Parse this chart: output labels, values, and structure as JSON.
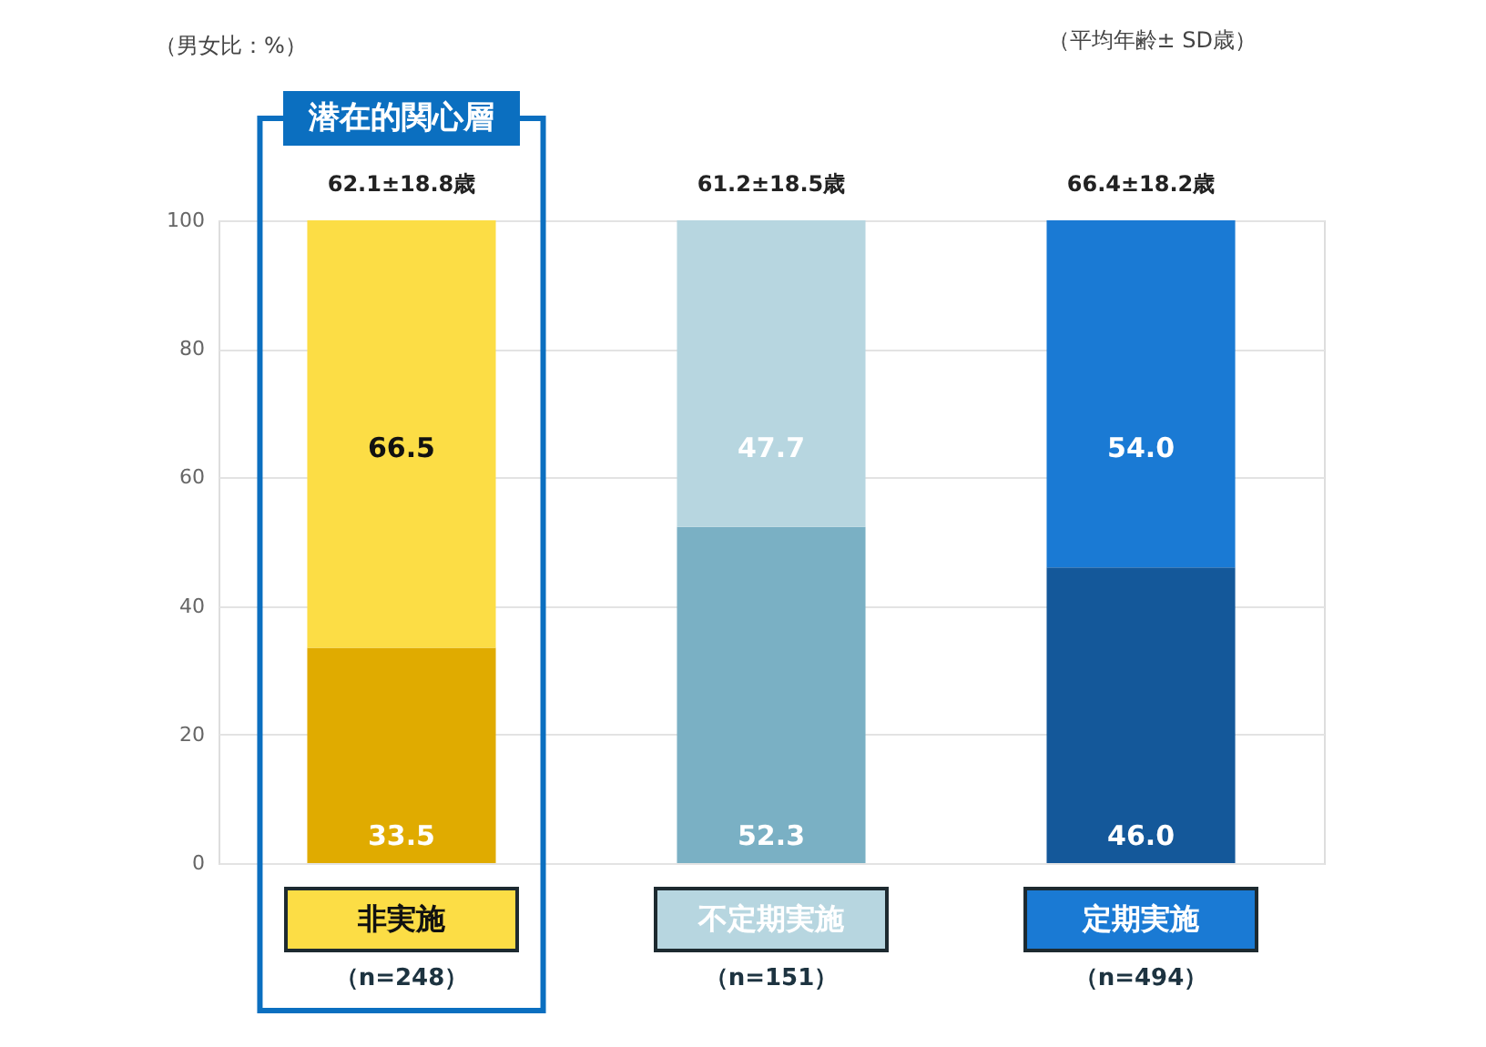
{
  "chart_data": {
    "type": "bar",
    "stacked": true,
    "categories": [
      "非実施",
      "不定期実施",
      "定期実施"
    ],
    "series": [
      {
        "colors": [
          "#e0ab00",
          "#7ab0c4",
          "#14589a"
        ],
        "values": [
          33.5,
          52.3,
          46.0
        ],
        "value_labels": [
          "33.5",
          "52.3",
          "46.0"
        ]
      },
      {
        "colors": [
          "#fcdd45",
          "#b7d6e0",
          "#1a7ad4"
        ],
        "values": [
          66.5,
          47.7,
          54.0
        ],
        "value_labels": [
          "66.5",
          "47.7",
          "54.0"
        ]
      }
    ],
    "ylim": [
      0,
      100
    ],
    "yticks": [
      0,
      20,
      40,
      60,
      80,
      100
    ],
    "grid": "y",
    "annotations": [
      {
        "text": "62.1±18.8歳",
        "x": "非実施",
        "y": 100
      },
      {
        "text": "61.2±18.5歳",
        "x": "不定期実施",
        "y": 100
      },
      {
        "text": "66.4±18.2歳",
        "x": "定期実施",
        "y": 100
      },
      "（男女比：%）",
      "（平均年齢± SD歳）",
      "潜在的関心層",
      "（n=248）",
      "（n=151）",
      "（n=494）"
    ]
  }
}
